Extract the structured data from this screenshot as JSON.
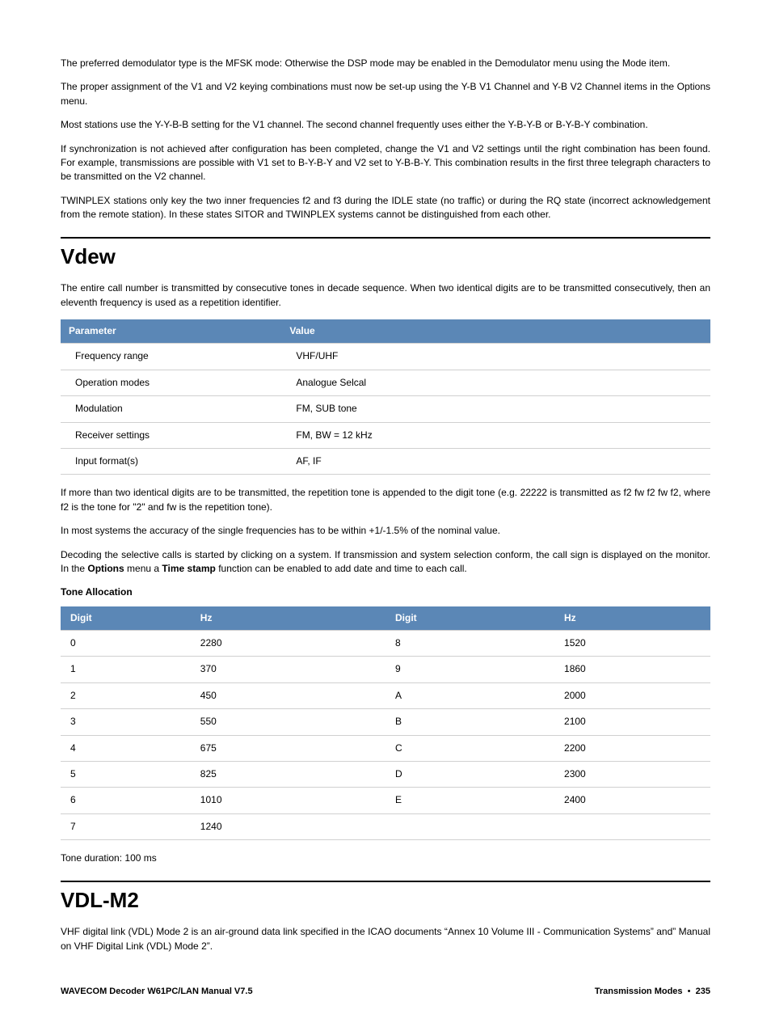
{
  "intro": {
    "p1": "The preferred demodulator type is the MFSK mode: Otherwise the DSP mode may be enabled in the Demodulator menu using the Mode item.",
    "p2": "The proper assignment of the V1 and V2 keying combinations must now be set-up using the Y-B V1 Channel and Y-B V2 Channel items in the Options menu.",
    "p3": "Most stations use the Y-Y-B-B setting for the V1 channel. The second channel frequently uses either the Y-B-Y-B or B-Y-B-Y combination.",
    "p4": "If synchronization is not achieved after configuration has been completed, change the V1 and V2 settings until the right combination has been found. For example, transmissions are possible with V1 set to B-Y-B-Y and V2 set to Y-B-B-Y. This combination results in the first three telegraph characters to be transmitted on the V2 channel.",
    "p5": "TWINPLEX stations only key the two inner frequencies f2 and f3 during the IDLE state (no traffic) or during the RQ state (incorrect acknowledgement from the remote station). In these states SITOR and TWINPLEX systems cannot be distinguished from each other."
  },
  "vdew": {
    "heading": "Vdew",
    "intro": "The entire call number is transmitted by consecutive tones in decade sequence. When two identical digits are to be transmitted consecutively, then an eleventh frequency is used as a repetition identifier.",
    "param_headers": {
      "col1": "Parameter",
      "col2": "Value"
    },
    "param_table": [
      {
        "p": "Frequency range",
        "v": "VHF/UHF"
      },
      {
        "p": "Operation modes",
        "v": "Analogue Selcal"
      },
      {
        "p": "Modulation",
        "v": "FM, SUB tone"
      },
      {
        "p": "Receiver settings",
        "v": "FM, BW = 12 kHz"
      },
      {
        "p": "Input format(s)",
        "v": "AF, IF"
      }
    ],
    "p_after1": "If more than two identical digits are to be transmitted, the repetition tone is appended to the digit tone (e.g. 22222 is transmitted as f2 fw f2 fw f2, where f2 is the tone for \"2\" and fw is the repetition tone).",
    "p_after2": "In most systems the accuracy of the single frequencies has to be within +1/-1.5% of the nominal value.",
    "p_after3_a": "Decoding the selective calls is started by clicking on a system. If transmission and system selection conform, the call sign is displayed on the monitor. In the ",
    "p_after3_b": "Options",
    "p_after3_c": " menu a ",
    "p_after3_d": "Time stamp",
    "p_after3_e": " function can be enabled to add date and time to each call.",
    "tone_heading": "Tone Allocation",
    "tone_headers": {
      "c1": "Digit",
      "c2": "Hz",
      "c3": "Digit",
      "c4": "Hz"
    },
    "tone_rows": [
      {
        "d1": "0",
        "h1": "2280",
        "d2": "8",
        "h2": "1520"
      },
      {
        "d1": "1",
        "h1": "370",
        "d2": "9",
        "h2": "1860"
      },
      {
        "d1": "2",
        "h1": "450",
        "d2": "A",
        "h2": "2000"
      },
      {
        "d1": "3",
        "h1": "550",
        "d2": "B",
        "h2": "2100"
      },
      {
        "d1": "4",
        "h1": "675",
        "d2": "C",
        "h2": "2200"
      },
      {
        "d1": "5",
        "h1": "825",
        "d2": "D",
        "h2": "2300"
      },
      {
        "d1": "6",
        "h1": "1010",
        "d2": "E",
        "h2": "2400"
      },
      {
        "d1": "7",
        "h1": "1240",
        "d2": "",
        "h2": ""
      }
    ],
    "tone_duration": "Tone duration: 100 ms"
  },
  "vdlm2": {
    "heading": "VDL-M2",
    "p1": "VHF digital link (VDL) Mode 2 is an air-ground data link specified in the ICAO documents “Annex 10 Volume III - Communication Systems” and” Manual on VHF Digital Link (VDL) Mode 2”."
  },
  "footer": {
    "left": "WAVECOM Decoder W61PC/LAN Manual V7.5",
    "right_section": "Transmission Modes",
    "right_page": "235"
  }
}
